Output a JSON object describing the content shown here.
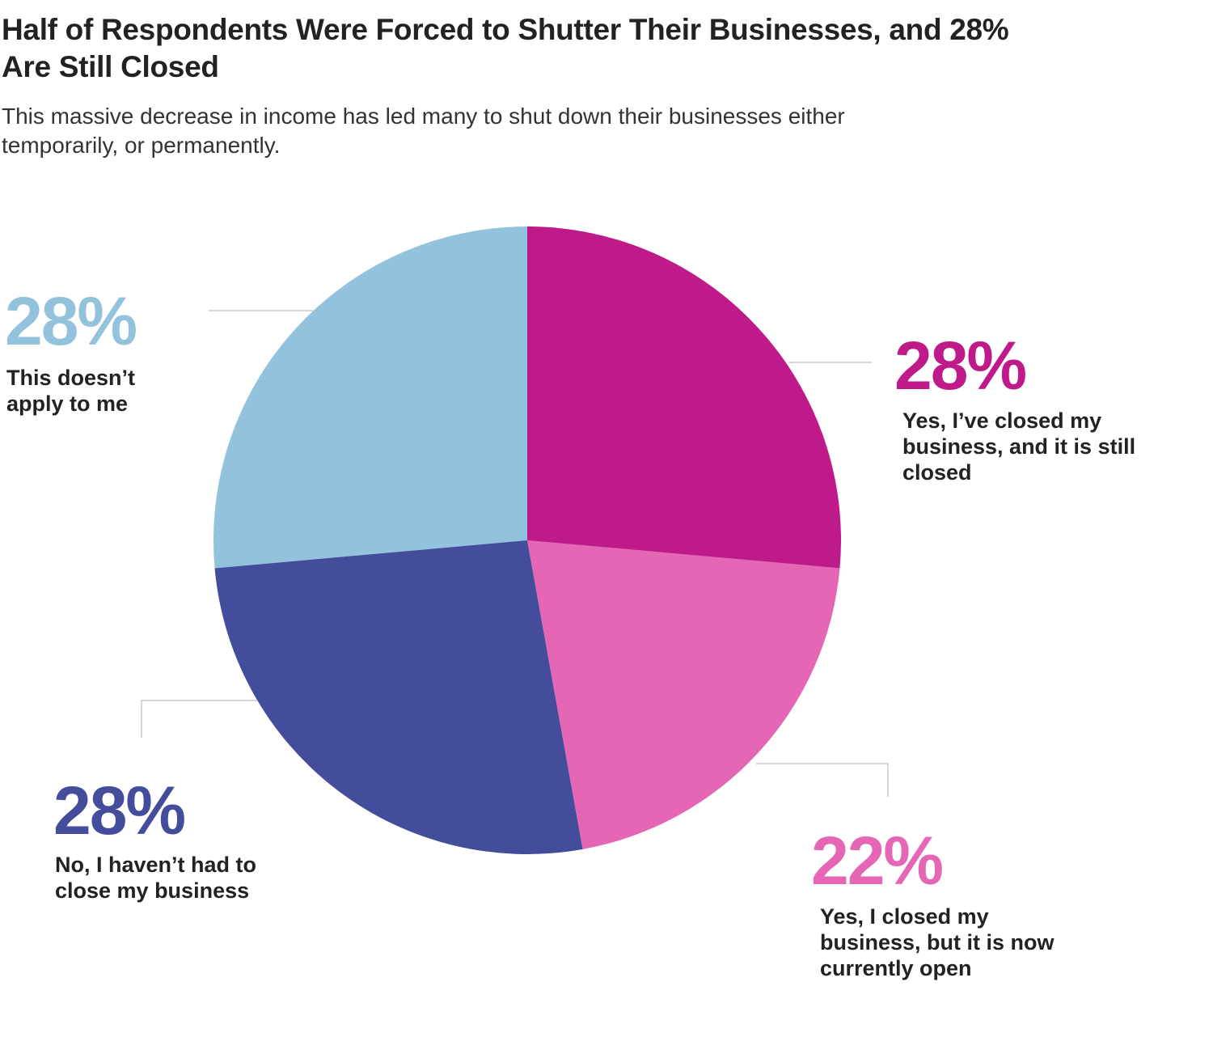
{
  "chart_data": {
    "type": "pie",
    "title": "Half of Respondents Were Forced to Shutter Their Businesses, and 28% Are Still Closed",
    "subtitle": "This massive decrease in income has led many to shut down their businesses either temporarily, or permanently.",
    "categories": [
      "Yes, I’ve closed my business, and it is still closed",
      "Yes, I closed my business, but it is now currently open",
      "No, I haven’t had to close my business",
      "This doesn’t apply to me"
    ],
    "values": [
      28,
      22,
      28,
      28
    ],
    "value_labels": [
      "28%",
      "22%",
      "28%",
      "28%"
    ],
    "colors": [
      "#bf1a8a",
      "#e466b4",
      "#434d9b",
      "#93c2dc"
    ]
  }
}
